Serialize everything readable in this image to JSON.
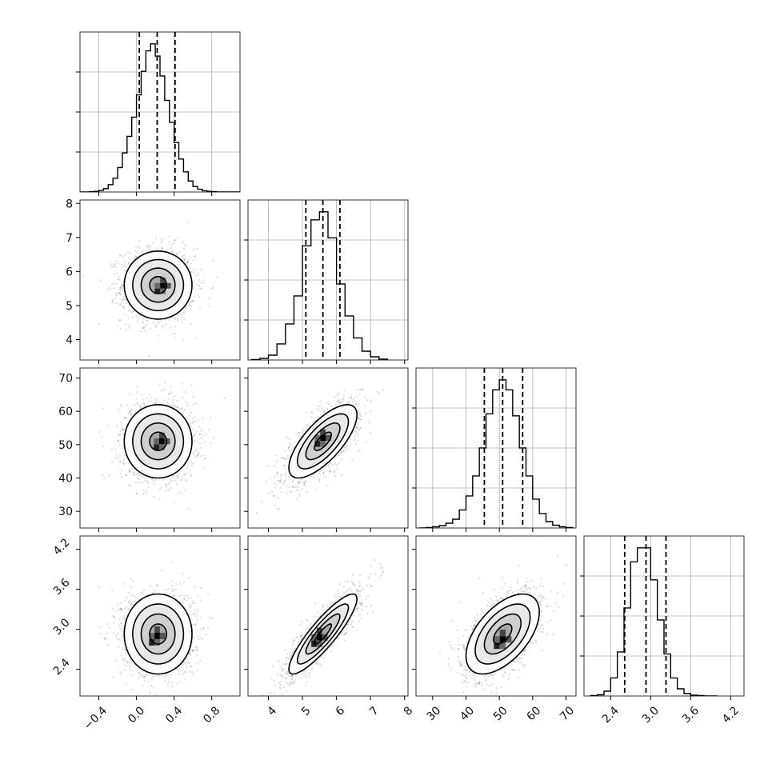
{
  "chart_data": {
    "type": "corner",
    "grid": true,
    "parameters": [
      {
        "range": [
          -0.6,
          1.1
        ],
        "ticks": [
          -0.4,
          0.0,
          0.4,
          0.8
        ],
        "tick_labels": [
          "−0.4",
          "0.0",
          "0.4",
          "0.8"
        ],
        "quantiles": [
          0.03,
          0.22,
          0.41
        ],
        "hist_bins": [
          -0.6,
          -0.55,
          -0.5,
          -0.45,
          -0.4,
          -0.35,
          -0.3,
          -0.25,
          -0.2,
          -0.15,
          -0.1,
          -0.05,
          0.0,
          0.05,
          0.1,
          0.15,
          0.2,
          0.25,
          0.3,
          0.35,
          0.4,
          0.45,
          0.5,
          0.55,
          0.6,
          0.65,
          0.7,
          0.75,
          0.8,
          0.85,
          0.9,
          0.95,
          1.0,
          1.05,
          1.1
        ],
        "hist_counts": [
          0,
          0,
          1,
          2,
          5,
          11,
          24,
          45,
          80,
          128,
          182,
          245,
          318,
          395,
          462,
          485,
          445,
          380,
          300,
          228,
          162,
          108,
          66,
          36,
          18,
          9,
          4,
          2,
          1,
          0,
          0,
          0,
          0,
          0
        ]
      },
      {
        "range": [
          3.4,
          8.1
        ],
        "ticks": [
          4,
          5,
          6,
          7,
          8
        ],
        "tick_labels": [
          "4",
          "5",
          "6",
          "7",
          "8"
        ],
        "quantiles": [
          5.1,
          5.6,
          6.1
        ],
        "hist_bins": [
          3.5,
          3.75,
          4.0,
          4.25,
          4.5,
          4.75,
          5.0,
          5.25,
          5.5,
          5.75,
          6.0,
          6.25,
          6.5,
          6.75,
          7.0,
          7.25,
          7.5
        ],
        "hist_counts": [
          1,
          4,
          12,
          40,
          90,
          160,
          285,
          350,
          370,
          305,
          190,
          110,
          55,
          22,
          8,
          2
        ]
      },
      {
        "range": [
          25,
          73
        ],
        "ticks": [
          30,
          40,
          50,
          60,
          70
        ],
        "tick_labels": [
          "30",
          "40",
          "50",
          "60",
          "70"
        ],
        "quantiles": [
          45.5,
          51,
          57
        ],
        "hist_bins": [
          26,
          28,
          30,
          32,
          34,
          36,
          38,
          40,
          42,
          44,
          46,
          48,
          50,
          52,
          54,
          56,
          58,
          60,
          62,
          64,
          66,
          68,
          70,
          72
        ],
        "hist_counts": [
          0,
          1,
          3,
          6,
          12,
          22,
          45,
          80,
          130,
          200,
          285,
          345,
          370,
          345,
          280,
          200,
          130,
          72,
          36,
          16,
          7,
          3,
          1
        ]
      },
      {
        "range": [
          2.0,
          4.4
        ],
        "ticks": [
          2.4,
          3.0,
          3.6,
          4.2
        ],
        "tick_labels": [
          "2.4",
          "3.0",
          "3.6",
          "4.2"
        ],
        "quantiles": [
          2.61,
          2.93,
          3.23
        ],
        "hist_bins": [
          2.1,
          2.2,
          2.3,
          2.4,
          2.5,
          2.6,
          2.7,
          2.8,
          2.9,
          3.0,
          3.1,
          3.2,
          3.3,
          3.4,
          3.5,
          3.6,
          3.7,
          3.8,
          3.9,
          4.0
        ],
        "hist_counts": [
          1,
          3,
          12,
          45,
          110,
          220,
          335,
          370,
          370,
          290,
          190,
          105,
          45,
          18,
          6,
          2,
          1,
          0,
          0
        ]
      }
    ],
    "pairs": [
      {
        "row": 1,
        "col": 0,
        "center": [
          0.23,
          5.6
        ],
        "sigma": [
          0.18,
          0.5
        ],
        "corr": 0.0,
        "peak": [
          0.28,
          5.58
        ]
      },
      {
        "row": 2,
        "col": 0,
        "center": [
          0.23,
          51
        ],
        "sigma": [
          0.18,
          5.5
        ],
        "corr": 0.0,
        "peak": [
          0.27,
          51
        ]
      },
      {
        "row": 2,
        "col": 1,
        "center": [
          5.6,
          51
        ],
        "sigma": [
          0.5,
          5.5
        ],
        "corr": 0.72,
        "peak": [
          5.6,
          52
        ]
      },
      {
        "row": 3,
        "col": 0,
        "center": [
          0.23,
          2.93
        ],
        "sigma": [
          0.18,
          0.3
        ],
        "corr": 0.0,
        "peak": [
          0.22,
          2.9
        ]
      },
      {
        "row": 3,
        "col": 1,
        "center": [
          5.6,
          2.93
        ],
        "sigma": [
          0.5,
          0.3
        ],
        "corr": 0.88,
        "peak": [
          5.5,
          2.88
        ]
      },
      {
        "row": 3,
        "col": 2,
        "center": [
          51,
          2.93
        ],
        "sigma": [
          5.5,
          0.3
        ],
        "corr": 0.55,
        "peak": [
          51,
          2.85
        ]
      }
    ],
    "contour_levels_sigma": [
      0.5,
      1.0,
      1.5,
      2.0
    ]
  }
}
